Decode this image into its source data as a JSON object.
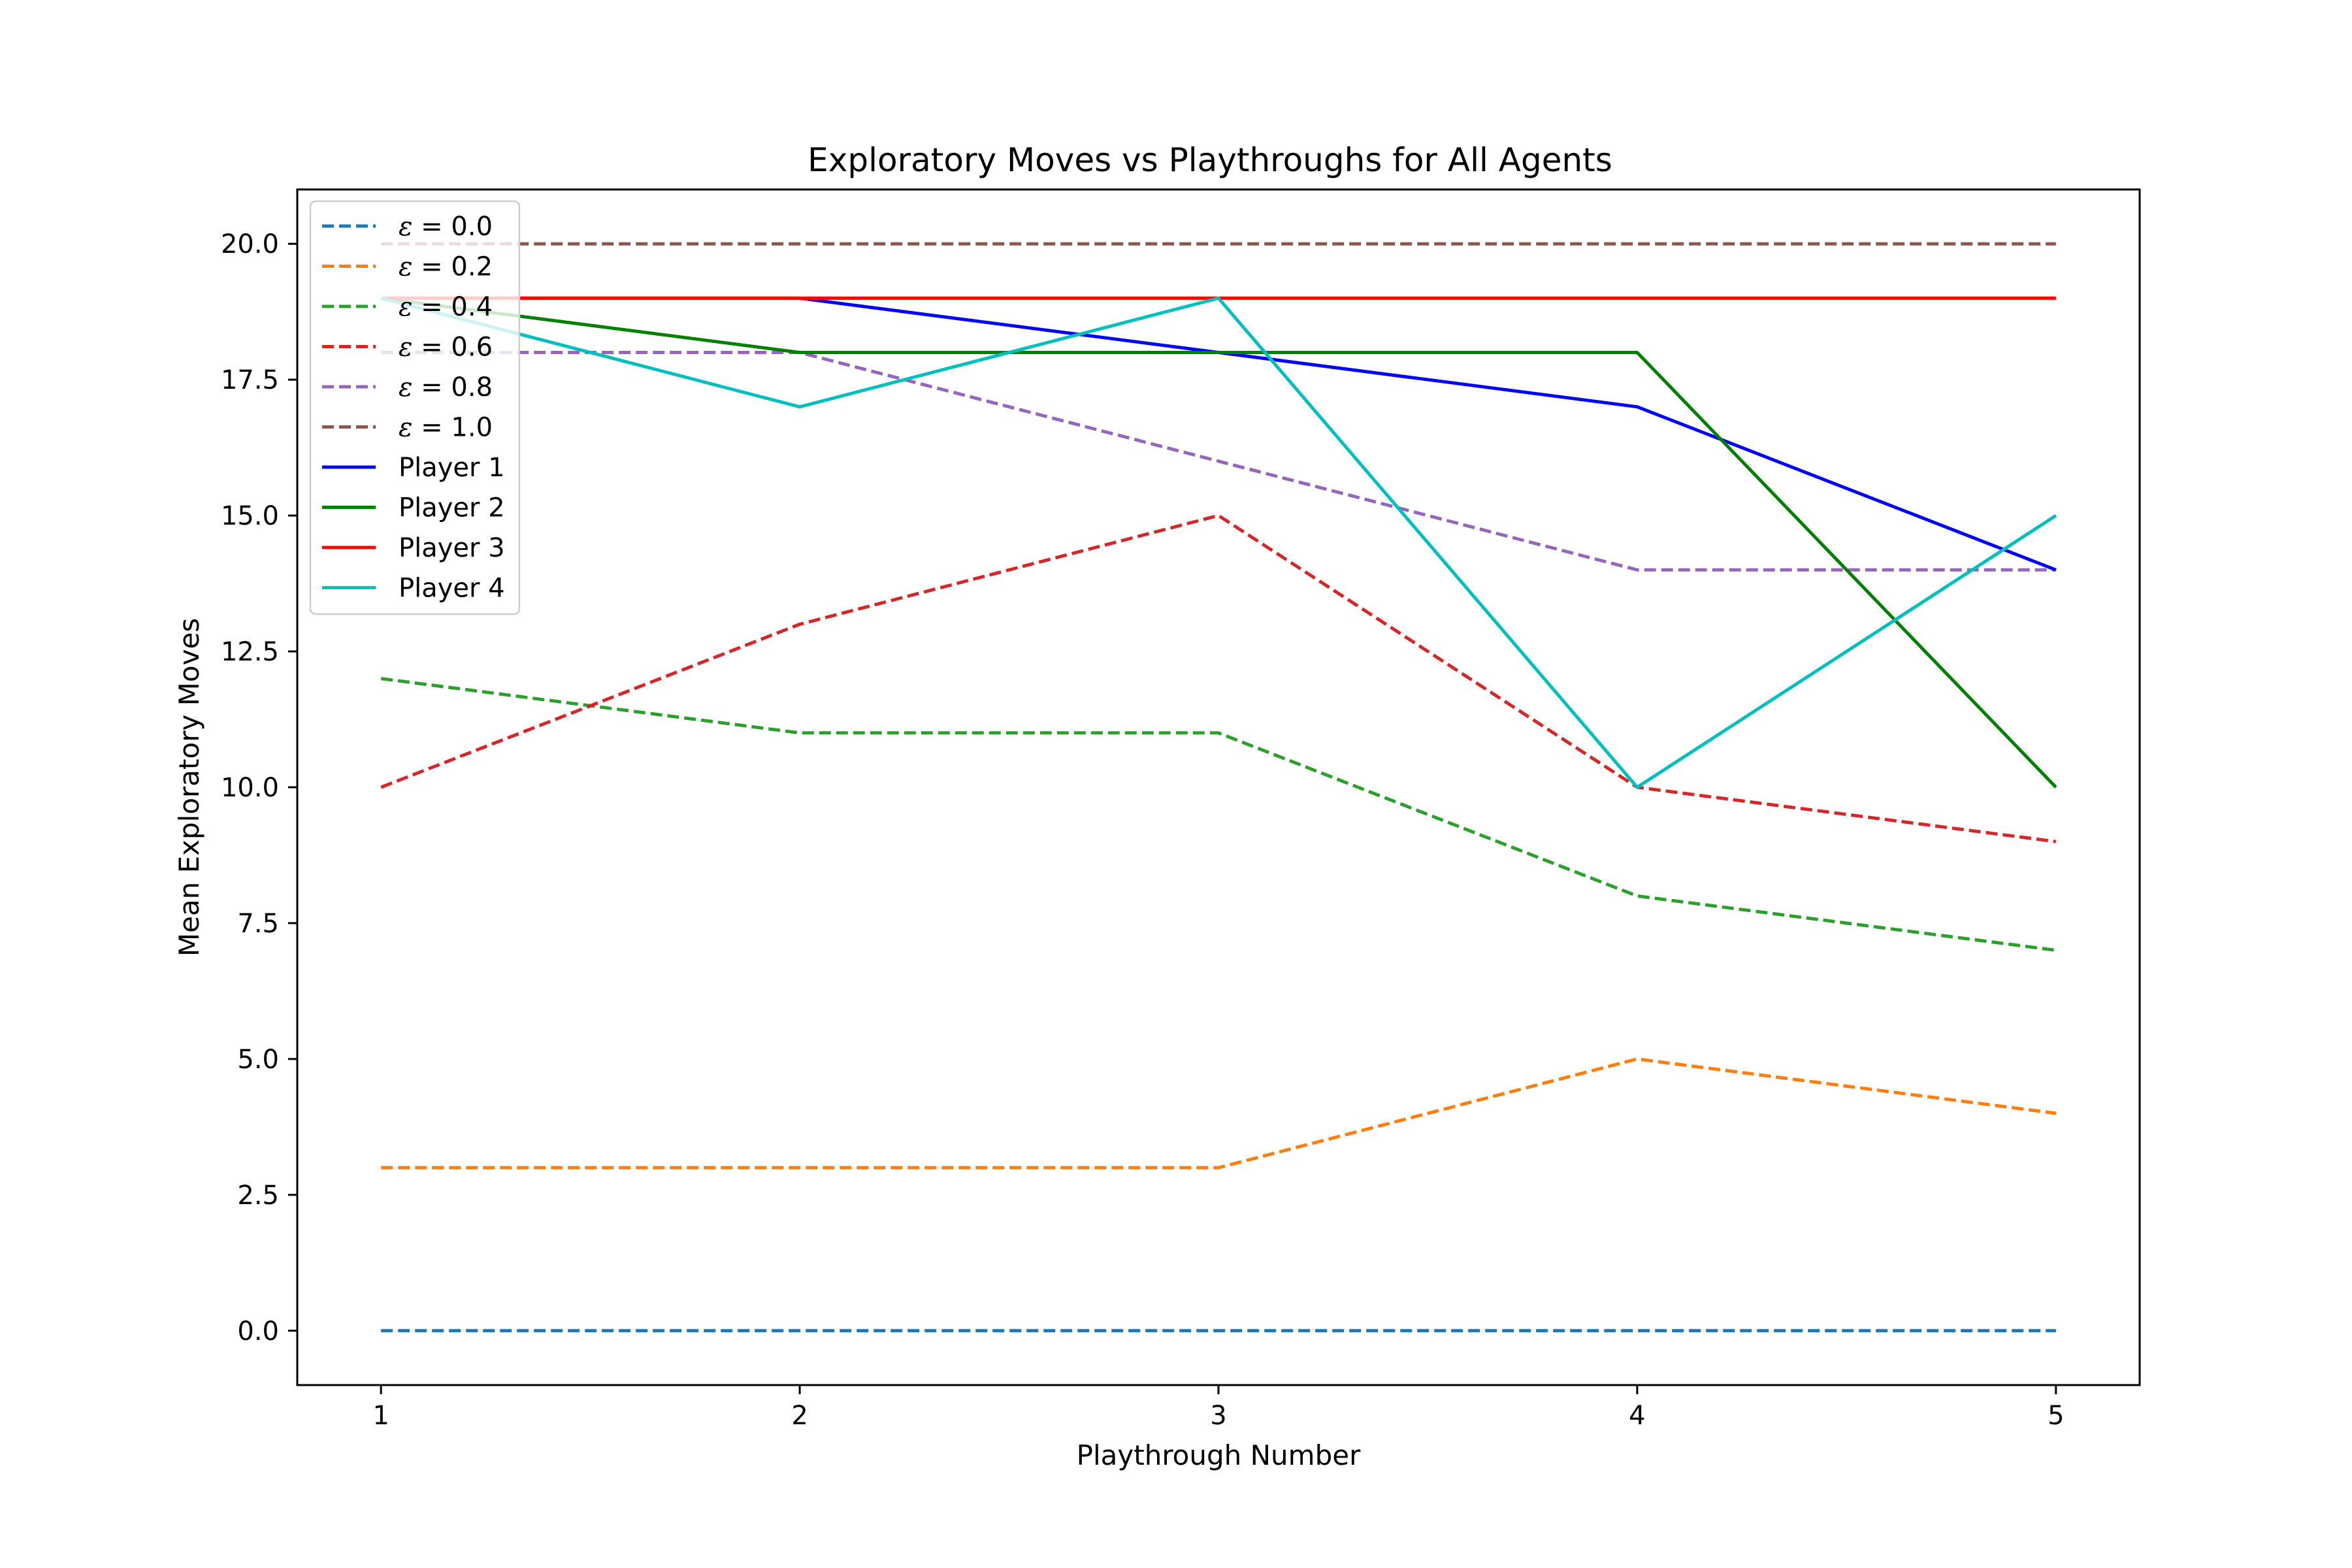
{
  "chart_data": {
    "type": "line",
    "title": "Exploratory Moves vs Playthroughs for All Agents",
    "xlabel": "Playthrough Number",
    "ylabel": "Mean Exploratory Moves",
    "x": [
      1,
      2,
      3,
      4,
      5
    ],
    "xlim": [
      0.8,
      5.2
    ],
    "ylim": [
      -1.0,
      21.0
    ],
    "xticks": [
      "1",
      "2",
      "3",
      "4",
      "5"
    ],
    "yticks": [
      "0.0",
      "2.5",
      "5.0",
      "7.5",
      "10.0",
      "12.5",
      "15.0",
      "17.5",
      "20.0"
    ],
    "yticks_values": [
      0.0,
      2.5,
      5.0,
      7.5,
      10.0,
      12.5,
      15.0,
      17.5,
      20.0
    ],
    "grid": false,
    "legend_placement": "upper-left",
    "series": [
      {
        "name": "ε = 0.0",
        "eps": "ε",
        "eq": " = 0.0",
        "values": [
          0,
          0,
          0,
          0,
          0
        ],
        "color": "#1f77b4",
        "style": "dashed"
      },
      {
        "name": "ε = 0.2",
        "eps": "ε",
        "eq": " = 0.2",
        "values": [
          3,
          3,
          3,
          5,
          4
        ],
        "color": "#ff7f0e",
        "style": "dashed"
      },
      {
        "name": "ε = 0.4",
        "eps": "ε",
        "eq": " = 0.4",
        "values": [
          12,
          11,
          11,
          8,
          7
        ],
        "color": "#2ca02c",
        "style": "dashed"
      },
      {
        "name": "ε = 0.6",
        "eps": "ε",
        "eq": " = 0.6",
        "values": [
          10,
          13,
          15,
          10,
          9
        ],
        "color": "#d62728",
        "style": "dashed"
      },
      {
        "name": "ε = 0.8",
        "eps": "ε",
        "eq": " = 0.8",
        "values": [
          18,
          18,
          16,
          14,
          14
        ],
        "color": "#9467bd",
        "style": "dashed"
      },
      {
        "name": "ε = 1.0",
        "eps": "ε",
        "eq": " = 1.0",
        "values": [
          20,
          20,
          20,
          20,
          20
        ],
        "color": "#8c564b",
        "style": "dashed"
      },
      {
        "name": "Player 1",
        "eps": "",
        "eq": "Player 1",
        "values": [
          19,
          19,
          18,
          17,
          14
        ],
        "color": "#0000ff",
        "style": "solid"
      },
      {
        "name": "Player 2",
        "eps": "",
        "eq": "Player 2",
        "values": [
          19,
          18,
          18,
          18,
          10
        ],
        "color": "#008000",
        "style": "solid"
      },
      {
        "name": "Player 3",
        "eps": "",
        "eq": "Player 3",
        "values": [
          19,
          19,
          19,
          19,
          19
        ],
        "color": "#ff0000",
        "style": "solid"
      },
      {
        "name": "Player 4",
        "eps": "",
        "eq": "Player 4",
        "values": [
          19,
          17,
          19,
          10,
          15
        ],
        "color": "#00bfbf",
        "style": "solid"
      }
    ]
  }
}
